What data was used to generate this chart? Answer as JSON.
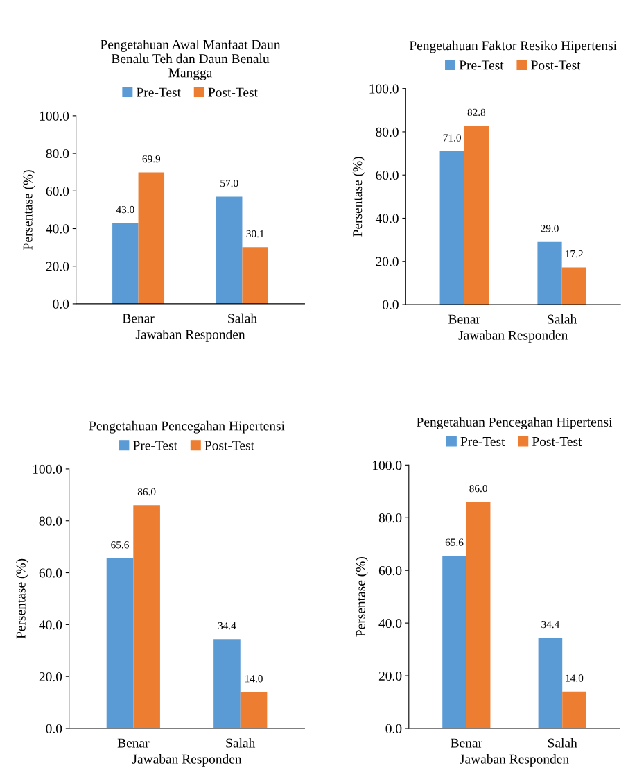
{
  "chart_data": [
    {
      "type": "bar",
      "title": "Pengetahuan Awal Manfaat Daun\nBenalu Teh dan Daun Benalu\nMangga",
      "xlabel": "Jawaban Responden",
      "ylabel": "Persentase (%)",
      "categories": [
        "Benar",
        "Salah"
      ],
      "ylim": [
        0,
        100
      ],
      "yticks": [
        {
          "value": 0,
          "label": "0.0"
        },
        {
          "value": 20,
          "label": "20.0"
        },
        {
          "value": 40,
          "label": "40.0"
        },
        {
          "value": 60,
          "label": "60.0"
        },
        {
          "value": 80,
          "label": "80.0"
        },
        {
          "value": 100,
          "label": "100.0"
        }
      ],
      "legend": "top",
      "grid": false,
      "series": [
        {
          "name": "Pre-Test",
          "color": "#5b9bd5",
          "values": [
            43.0,
            57.0
          ],
          "value_labels": [
            "43.0",
            "57.0"
          ]
        },
        {
          "name": "Post-Test",
          "color": "#ed7d31",
          "values": [
            69.9,
            30.1
          ],
          "value_labels": [
            "69.9",
            "30.1"
          ]
        }
      ]
    },
    {
      "type": "bar",
      "title": "Pengetahuan Faktor Resiko Hipertensi",
      "xlabel": "Jawaban Responden",
      "ylabel": "Persentase (%)",
      "categories": [
        "Benar",
        "Salah"
      ],
      "ylim": [
        0,
        100
      ],
      "yticks": [
        {
          "value": 0,
          "label": "0.0"
        },
        {
          "value": 20,
          "label": "20.0"
        },
        {
          "value": 40,
          "label": "40.0"
        },
        {
          "value": 60,
          "label": "60.0"
        },
        {
          "value": 80,
          "label": "80.0"
        },
        {
          "value": 100,
          "label": "100.0"
        }
      ],
      "legend": "top",
      "grid": false,
      "series": [
        {
          "name": "Pre-Test",
          "color": "#5b9bd5",
          "values": [
            71.0,
            29.0
          ],
          "value_labels": [
            "71.0",
            "29.0"
          ]
        },
        {
          "name": "Post-Test",
          "color": "#ed7d31",
          "values": [
            82.8,
            17.2
          ],
          "value_labels": [
            "82.8",
            "17.2"
          ]
        }
      ]
    },
    {
      "type": "bar",
      "title": "Pengetahuan Pencegahan Hipertensi",
      "xlabel": "Jawaban Responden",
      "ylabel": "Persentase (%)",
      "categories": [
        "Benar",
        "Salah"
      ],
      "ylim": [
        0,
        100
      ],
      "yticks": [
        {
          "value": 0,
          "label": "0.0"
        },
        {
          "value": 20,
          "label": "20.0"
        },
        {
          "value": 40,
          "label": "40.0"
        },
        {
          "value": 60,
          "label": "60.0"
        },
        {
          "value": 80,
          "label": "80.0"
        },
        {
          "value": 100,
          "label": "100.0"
        }
      ],
      "legend": "top",
      "grid": false,
      "series": [
        {
          "name": "Pre-Test",
          "color": "#5b9bd5",
          "values": [
            65.6,
            34.4
          ],
          "value_labels": [
            "65.6",
            "34.4"
          ]
        },
        {
          "name": "Post-Test",
          "color": "#ed7d31",
          "values": [
            86.0,
            14.0
          ],
          "value_labels": [
            "86.0",
            "14.0"
          ]
        }
      ]
    },
    {
      "type": "bar",
      "title": "Pengetahuan Pencegahan Hipertensi",
      "xlabel": "Jawaban Responden",
      "ylabel": "Persentase (%)",
      "categories": [
        "Benar",
        "Salah"
      ],
      "ylim": [
        0,
        100
      ],
      "yticks": [
        {
          "value": 0,
          "label": "0.0"
        },
        {
          "value": 20,
          "label": "20.0"
        },
        {
          "value": 40,
          "label": "40.0"
        },
        {
          "value": 60,
          "label": "60.0"
        },
        {
          "value": 80,
          "label": "80.0"
        },
        {
          "value": 100,
          "label": "100.0"
        }
      ],
      "legend": "top",
      "grid": false,
      "series": [
        {
          "name": "Pre-Test",
          "color": "#5b9bd5",
          "values": [
            65.6,
            34.4
          ],
          "value_labels": [
            "65.6",
            "34.4"
          ]
        },
        {
          "name": "Post-Test",
          "color": "#ed7d31",
          "values": [
            86.0,
            14.0
          ],
          "value_labels": [
            "86.0",
            "14.0"
          ]
        }
      ]
    }
  ]
}
